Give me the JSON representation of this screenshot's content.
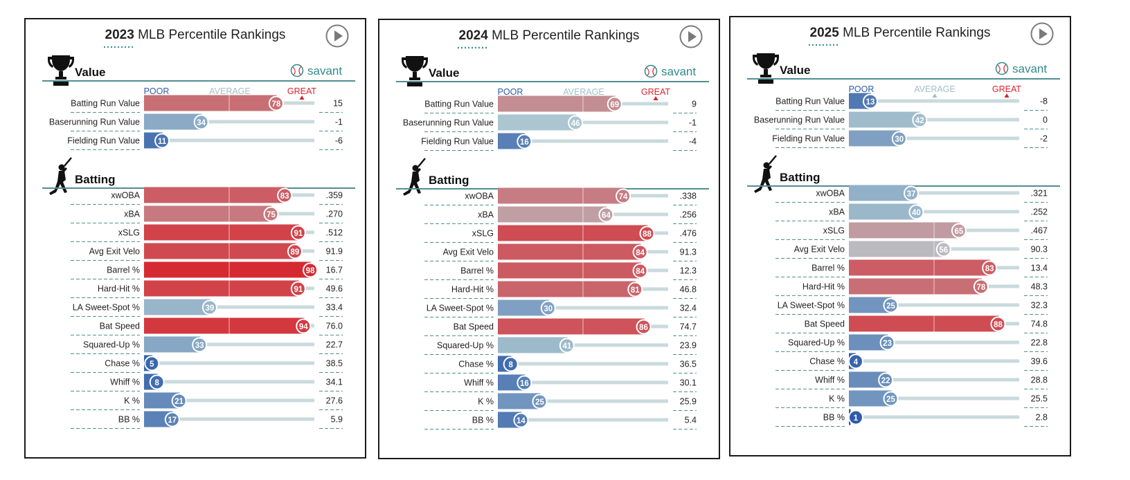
{
  "brand_label": "savant",
  "scale_labels": {
    "poor": "POOR",
    "average": "AVERAGE",
    "great": "GREAT"
  },
  "colors": {
    "poor": "#2c5aa8",
    "average": "#b6cfd3",
    "great": "#d7232b",
    "track": "#c9dadd",
    "section_rule": "#4f8d93",
    "brand": "#2f8b88"
  },
  "icons": [
    "trophy-icon",
    "batter-icon",
    "play-icon",
    "baseball-icon"
  ],
  "panels": [
    {
      "title_year": "2023",
      "title_rest": " MLB Percentile Rankings",
      "chart_data": {
        "type": "bar",
        "xlim": [
          0,
          100
        ],
        "sections": [
          {
            "title": "Value",
            "rows": [
              {
                "label": "Batting Run Value",
                "percentile": 78,
                "stat": "15"
              },
              {
                "label": "Baserunning Run Value",
                "percentile": 34,
                "stat": "-1"
              },
              {
                "label": "Fielding Run Value",
                "percentile": 11,
                "stat": "-6"
              }
            ]
          },
          {
            "title": "Batting",
            "rows": [
              {
                "label": "xwOBA",
                "percentile": 83,
                "stat": ".359"
              },
              {
                "label": "xBA",
                "percentile": 75,
                "stat": ".270"
              },
              {
                "label": "xSLG",
                "percentile": 91,
                "stat": ".512"
              },
              {
                "label": "Avg Exit Velo",
                "percentile": 89,
                "stat": "91.9"
              },
              {
                "label": "Barrel %",
                "percentile": 98,
                "stat": "16.7"
              },
              {
                "label": "Hard-Hit %",
                "percentile": 91,
                "stat": "49.6"
              },
              {
                "label": "LA Sweet-Spot %",
                "percentile": 39,
                "stat": "33.4"
              },
              {
                "label": "Bat Speed",
                "percentile": 94,
                "stat": "76.0"
              },
              {
                "label": "Squared-Up %",
                "percentile": 33,
                "stat": "22.7"
              },
              {
                "label": "Chase %",
                "percentile": 5,
                "stat": "38.5"
              },
              {
                "label": "Whiff %",
                "percentile": 8,
                "stat": "34.1"
              },
              {
                "label": "K %",
                "percentile": 21,
                "stat": "27.6"
              },
              {
                "label": "BB %",
                "percentile": 17,
                "stat": "5.9"
              }
            ]
          }
        ]
      }
    },
    {
      "title_year": "2024",
      "title_rest": " MLB Percentile Rankings",
      "chart_data": {
        "type": "bar",
        "xlim": [
          0,
          100
        ],
        "sections": [
          {
            "title": "Value",
            "rows": [
              {
                "label": "Batting Run Value",
                "percentile": 69,
                "stat": "9"
              },
              {
                "label": "Baserunning Run Value",
                "percentile": 46,
                "stat": "-1"
              },
              {
                "label": "Fielding Run Value",
                "percentile": 16,
                "stat": "-4"
              }
            ]
          },
          {
            "title": "Batting",
            "rows": [
              {
                "label": "xwOBA",
                "percentile": 74,
                "stat": ".338"
              },
              {
                "label": "xBA",
                "percentile": 64,
                "stat": ".256"
              },
              {
                "label": "xSLG",
                "percentile": 88,
                "stat": ".476"
              },
              {
                "label": "Avg Exit Velo",
                "percentile": 84,
                "stat": "91.3"
              },
              {
                "label": "Barrel %",
                "percentile": 84,
                "stat": "12.3"
              },
              {
                "label": "Hard-Hit %",
                "percentile": 81,
                "stat": "46.8"
              },
              {
                "label": "LA Sweet-Spot %",
                "percentile": 30,
                "stat": "32.4"
              },
              {
                "label": "Bat Speed",
                "percentile": 86,
                "stat": "74.7"
              },
              {
                "label": "Squared-Up %",
                "percentile": 41,
                "stat": "23.9"
              },
              {
                "label": "Chase %",
                "percentile": 8,
                "stat": "36.5"
              },
              {
                "label": "Whiff %",
                "percentile": 16,
                "stat": "30.1"
              },
              {
                "label": "K %",
                "percentile": 25,
                "stat": "25.9"
              },
              {
                "label": "BB %",
                "percentile": 14,
                "stat": "5.4"
              }
            ]
          }
        ]
      }
    },
    {
      "title_year": "2025",
      "title_rest": " MLB Percentile Rankings",
      "chart_data": {
        "type": "bar",
        "xlim": [
          0,
          100
        ],
        "sections": [
          {
            "title": "Value",
            "rows": [
              {
                "label": "Batting Run Value",
                "percentile": 13,
                "stat": "-8"
              },
              {
                "label": "Baserunning Run Value",
                "percentile": 42,
                "stat": "0"
              },
              {
                "label": "Fielding Run Value",
                "percentile": 30,
                "stat": "-2"
              }
            ]
          },
          {
            "title": "Batting",
            "rows": [
              {
                "label": "xwOBA",
                "percentile": 37,
                "stat": ".321"
              },
              {
                "label": "xBA",
                "percentile": 40,
                "stat": ".252"
              },
              {
                "label": "xSLG",
                "percentile": 65,
                "stat": ".467"
              },
              {
                "label": "Avg Exit Velo",
                "percentile": 56,
                "stat": "90.3"
              },
              {
                "label": "Barrel %",
                "percentile": 83,
                "stat": "13.4"
              },
              {
                "label": "Hard-Hit %",
                "percentile": 78,
                "stat": "48.3"
              },
              {
                "label": "LA Sweet-Spot %",
                "percentile": 25,
                "stat": "32.3"
              },
              {
                "label": "Bat Speed",
                "percentile": 88,
                "stat": "74.8"
              },
              {
                "label": "Squared-Up %",
                "percentile": 23,
                "stat": "22.8"
              },
              {
                "label": "Chase %",
                "percentile": 4,
                "stat": "39.6"
              },
              {
                "label": "Whiff %",
                "percentile": 22,
                "stat": "28.8"
              },
              {
                "label": "K %",
                "percentile": 25,
                "stat": "25.5"
              },
              {
                "label": "BB %",
                "percentile": 1,
                "stat": "2.8"
              }
            ]
          }
        ]
      }
    }
  ]
}
